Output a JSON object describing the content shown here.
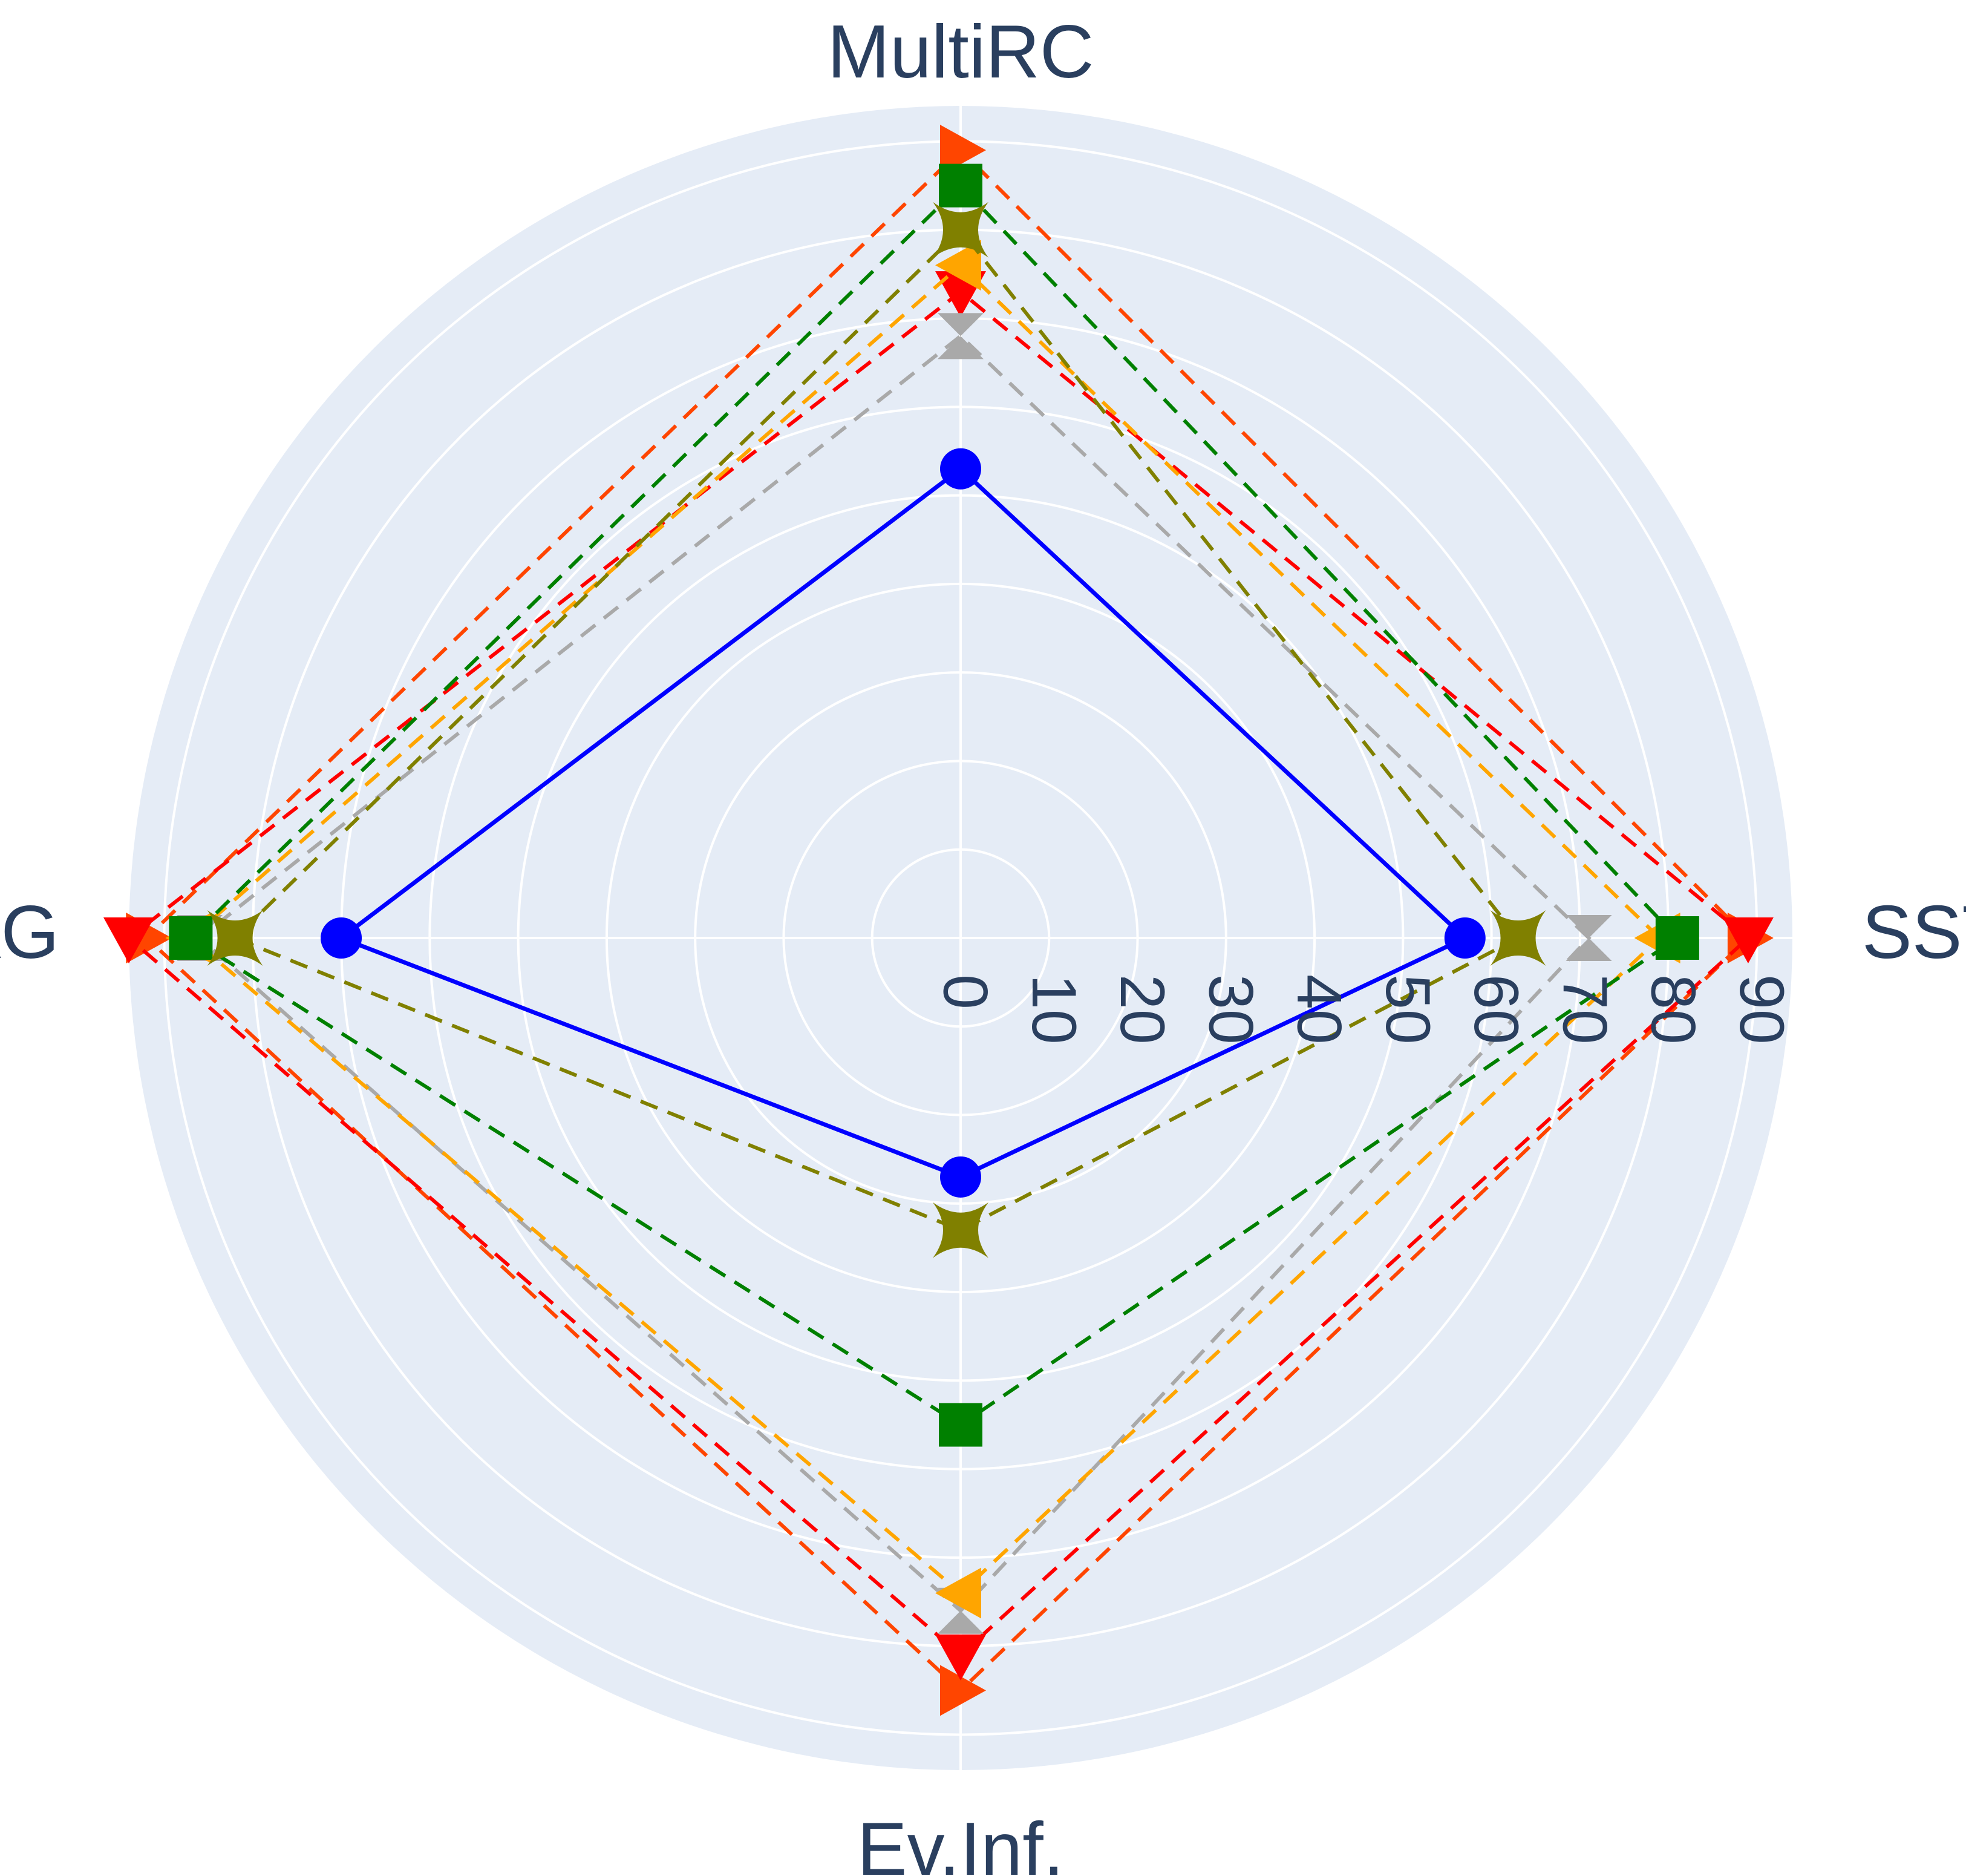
{
  "chart_data": {
    "type": "radar",
    "title": "",
    "axes": [
      "SST",
      "MultiRC",
      "AG",
      "Ev.Inf."
    ],
    "radial_range": [
      0,
      94
    ],
    "radial_ticks": [
      "0",
      "10",
      "20",
      "30",
      "40",
      "50",
      "60",
      "70",
      "80",
      "90"
    ],
    "radial_tick_values": [
      0,
      10,
      20,
      30,
      40,
      50,
      60,
      70,
      80,
      90
    ],
    "grid": true,
    "legend": "none",
    "background_color": "#e5ecf6",
    "gridline_color": "#ffffff",
    "text_color": "#2a3f5f",
    "series": [
      {
        "color": "#0000ff",
        "marker": "circle-icon",
        "line": "solid",
        "values": [
          57,
          53,
          70,
          27
        ]
      },
      {
        "color": "#808000",
        "marker": "star-icon",
        "line": "dashed",
        "values": [
          63,
          80,
          82,
          33
        ]
      },
      {
        "color": "#008000",
        "marker": "square-icon",
        "line": "dashed",
        "values": [
          81,
          85,
          87,
          55
        ]
      },
      {
        "color": "#ffa500",
        "marker": "triangle-left-icon",
        "line": "dashed",
        "values": [
          79,
          76,
          87,
          74
        ]
      },
      {
        "color": "#a9a9a9",
        "marker": "hourglass-icon",
        "line": "dashed",
        "values": [
          71,
          68,
          86,
          76
        ]
      },
      {
        "color": "#ff0000",
        "marker": "triangle-down-icon",
        "line": "dashed",
        "values": [
          89,
          73,
          94,
          81
        ]
      },
      {
        "color": "#ff4500",
        "marker": "triangle-right-icon",
        "line": "dashed",
        "values": [
          89,
          89,
          92,
          85
        ]
      }
    ]
  }
}
